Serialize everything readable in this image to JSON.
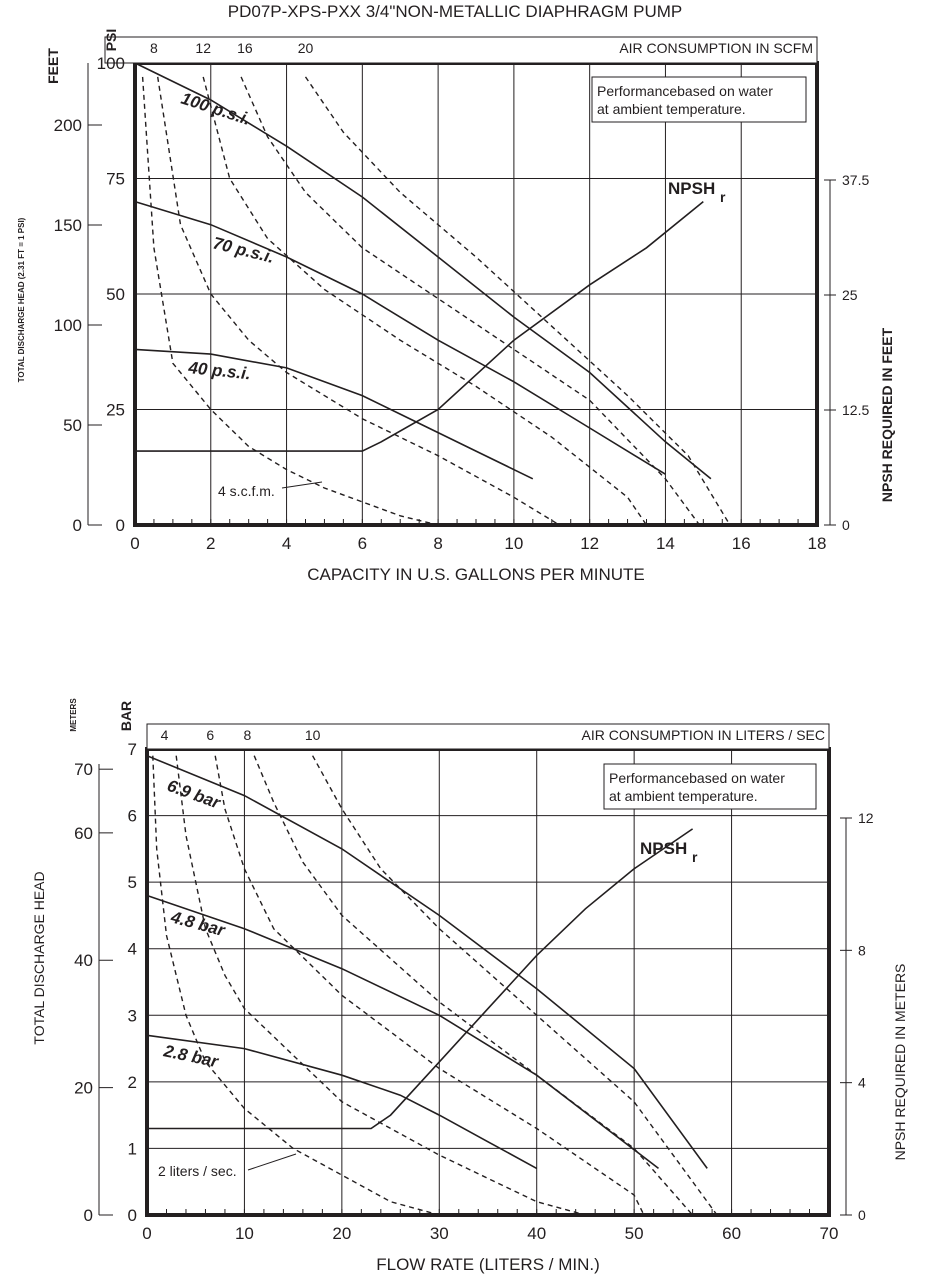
{
  "page_title": "PD07P-XPS-PXX 3/4\"NON-METALLIC DIAPHRAGM PUMP",
  "colors": {
    "ink": "#231f20",
    "grid": "#231f20",
    "background": "#ffffff"
  },
  "chart_data": [
    {
      "type": "line",
      "units": "imperial",
      "title": "PD07P-XPS-PXX 3/4\"NON-METALLIC DIAPHRAGM PUMP",
      "xlabel": "CAPACITY IN U.S. GALLONS PER MINUTE",
      "ylabel_left_feet": "FEET",
      "ylabel_left_head": "TOTAL DISCHARGE HEAD (2.31 FT = 1 PSI)",
      "ylabel_left_psi": "PSI",
      "ylabel_right": "NPSH REQUIRED IN FEET",
      "top_axis_label": "AIR CONSUMPTION IN SCFM",
      "note_line1": "Performancebased on water",
      "note_line2": "at ambient temperature.",
      "npsh_label": "NPSH",
      "npsh_sub": "r",
      "air_label": "4 s.c.f.m.",
      "x_ticks": [
        "0",
        "2",
        "4",
        "6",
        "8",
        "10",
        "12",
        "14",
        "16",
        "18"
      ],
      "psi_ticks": [
        "0",
        "25",
        "50",
        "75",
        "100"
      ],
      "feet_ticks": [
        "0",
        "50",
        "100",
        "150",
        "200"
      ],
      "npsh_ticks": [
        "0",
        "12.5",
        "25",
        "37.5"
      ],
      "top_ticks": [
        "8",
        "12",
        "16",
        "20"
      ],
      "xlim": [
        0,
        18
      ],
      "ylim": [
        0,
        100
      ],
      "grid": true,
      "series": [
        {
          "name": "100 p.s.i.",
          "x": [
            0,
            2,
            4,
            6,
            8,
            10,
            12,
            14,
            15.2
          ],
          "y": [
            100,
            92,
            82,
            71,
            58,
            45,
            33,
            18,
            10
          ]
        },
        {
          "name": "70 p.s.i.",
          "x": [
            0,
            2,
            4,
            6,
            8,
            10,
            12,
            14
          ],
          "y": [
            70,
            65,
            58,
            50,
            40,
            31,
            21,
            11
          ]
        },
        {
          "name": "40 p.s.i.",
          "x": [
            0,
            2,
            4,
            6,
            7,
            8,
            9,
            10.5
          ],
          "y": [
            38,
            37,
            34,
            28,
            24,
            20,
            16,
            10
          ]
        }
      ],
      "npsh_curve": {
        "x": [
          0,
          6,
          6.5,
          8,
          10,
          12,
          13.5,
          15
        ],
        "y": [
          16,
          16,
          18,
          25,
          40,
          52,
          60,
          70
        ]
      },
      "air_curves": [
        {
          "label": "4",
          "x": [
            0.2,
            0.5,
            1,
            2,
            3,
            4,
            5,
            6,
            7,
            8
          ],
          "y": [
            97,
            60,
            35,
            25,
            17,
            12,
            8,
            5,
            2,
            0
          ]
        },
        {
          "label": "8",
          "x": [
            0.6,
            1.2,
            2,
            3,
            4,
            6,
            8,
            10,
            11.2
          ],
          "y": [
            97,
            65,
            50,
            40,
            33,
            23,
            15,
            6,
            0
          ]
        },
        {
          "label": "12",
          "x": [
            1.8,
            2.5,
            3.5,
            5,
            7,
            9,
            11,
            13,
            13.5
          ],
          "y": [
            97,
            75,
            62,
            51,
            40,
            30,
            19,
            6,
            0
          ]
        },
        {
          "label": "16",
          "x": [
            2.8,
            3.5,
            4.5,
            6,
            8,
            10,
            12,
            14,
            14.9
          ],
          "y": [
            97,
            84,
            72,
            60,
            49,
            38,
            27,
            10,
            0
          ]
        },
        {
          "label": "20",
          "x": [
            4.5,
            5.5,
            7,
            9,
            11,
            13,
            14.6,
            15.7
          ],
          "y": [
            97,
            85,
            72,
            58,
            43,
            28,
            15,
            0
          ]
        }
      ]
    },
    {
      "type": "line",
      "units": "metric",
      "xlabel": "FLOW RATE (LITERS / MIN.)",
      "ylabel_left_meters": "METERS",
      "ylabel_left_head": "TOTAL DISCHARGE HEAD",
      "ylabel_left_bar": "BAR",
      "ylabel_right": "NPSH REQUIRED IN METERS",
      "top_axis_label": "AIR CONSUMPTION IN LITERS / SEC",
      "note_line1": "Performancebased on water",
      "note_line2": "at ambient temperature.",
      "npsh_label": "NPSH",
      "npsh_sub": "r",
      "air_label": "2 liters / sec.",
      "x_ticks": [
        "0",
        "10",
        "20",
        "30",
        "40",
        "50",
        "60",
        "70"
      ],
      "bar_ticks": [
        "0",
        "1",
        "2",
        "3",
        "4",
        "5",
        "6",
        "7"
      ],
      "meters_ticks": [
        "0",
        "20",
        "40",
        "60",
        "70"
      ],
      "npsh_ticks": [
        "0",
        "4",
        "8",
        "12"
      ],
      "top_ticks": [
        "4",
        "6",
        "8",
        "10"
      ],
      "xlim": [
        0,
        70
      ],
      "ylim": [
        0,
        7
      ],
      "grid": true,
      "series": [
        {
          "name": "6.9 bar",
          "x": [
            0,
            10,
            20,
            30,
            40,
            50,
            57.5
          ],
          "y": [
            6.9,
            6.3,
            5.5,
            4.5,
            3.4,
            2.2,
            0.7
          ]
        },
        {
          "name": "4.8 bar",
          "x": [
            0,
            10,
            20,
            30,
            40,
            52.5
          ],
          "y": [
            4.8,
            4.3,
            3.7,
            3.0,
            2.1,
            0.7
          ]
        },
        {
          "name": "2.8 bar",
          "x": [
            0,
            10,
            20,
            26,
            30,
            35,
            40
          ],
          "y": [
            2.7,
            2.5,
            2.1,
            1.8,
            1.5,
            1.1,
            0.7
          ]
        }
      ],
      "npsh_curve": {
        "x": [
          0,
          23,
          25,
          30,
          35,
          40,
          45,
          50,
          56
        ],
        "y": [
          1.3,
          1.3,
          1.5,
          2.3,
          3.1,
          3.9,
          4.6,
          5.2,
          5.8
        ]
      },
      "air_curves": [
        {
          "label": "4",
          "x": [
            0.6,
            1,
            2,
            4,
            6,
            10,
            15,
            20,
            25,
            30
          ],
          "y": [
            6.9,
            5.5,
            4.2,
            3.0,
            2.3,
            1.6,
            1.0,
            0.6,
            0.2,
            0
          ]
        },
        {
          "label": "6",
          "x": [
            3,
            4,
            6,
            8,
            10,
            15,
            20,
            30,
            40,
            45
          ],
          "y": [
            6.9,
            5.7,
            4.3,
            3.6,
            3.1,
            2.4,
            1.7,
            0.9,
            0.2,
            0
          ]
        },
        {
          "label": "8",
          "x": [
            7,
            8,
            10,
            13,
            20,
            30,
            40,
            50,
            51
          ],
          "y": [
            6.9,
            6.1,
            5.2,
            4.3,
            3.3,
            2.2,
            1.3,
            0.3,
            0
          ]
        },
        {
          "label": "10",
          "x": [
            11,
            13,
            16,
            20,
            30,
            40,
            50,
            56
          ],
          "y": [
            6.9,
            6.2,
            5.3,
            4.5,
            3.2,
            2.1,
            1.0,
            0
          ]
        },
        {
          "label": "12",
          "x": [
            17,
            20,
            24,
            30,
            40,
            50,
            58.5
          ],
          "y": [
            6.9,
            6.1,
            5.2,
            4.3,
            3.0,
            1.7,
            0
          ]
        }
      ]
    }
  ]
}
